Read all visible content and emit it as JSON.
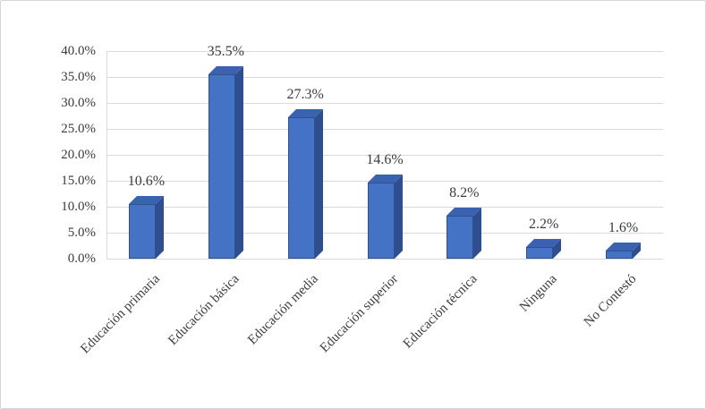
{
  "chart_data": {
    "type": "bar",
    "style": "3d-column",
    "title": "",
    "xlabel": "",
    "ylabel": "",
    "categories": [
      "Educación primaria",
      "Educación básica",
      "Educación media",
      "Educación superior",
      "Educación técnica",
      "Ninguna",
      "No Contestó"
    ],
    "values": [
      10.6,
      35.5,
      27.3,
      14.6,
      8.2,
      2.2,
      1.6
    ],
    "data_labels": [
      "10.6%",
      "35.5%",
      "27.3%",
      "14.6%",
      "8.2%",
      "2.2%",
      "1.6%"
    ],
    "ylim": [
      0,
      40
    ],
    "ytick_step": 5,
    "ytick_labels": [
      "0.0%",
      "5.0%",
      "10.0%",
      "15.0%",
      "20.0%",
      "25.0%",
      "30.0%",
      "35.0%",
      "40.0%"
    ],
    "grid": true,
    "legend": false,
    "colors": {
      "bar_front": "#4472C4",
      "bar_top": "#3A62AE",
      "bar_side": "#2E4E8F",
      "bar_border": "#2F528F",
      "gridline": "#D9D9D9",
      "axis_text": "#3B3B3B",
      "figure_border": "#D6D6D6",
      "background": "#FFFFFF"
    }
  }
}
